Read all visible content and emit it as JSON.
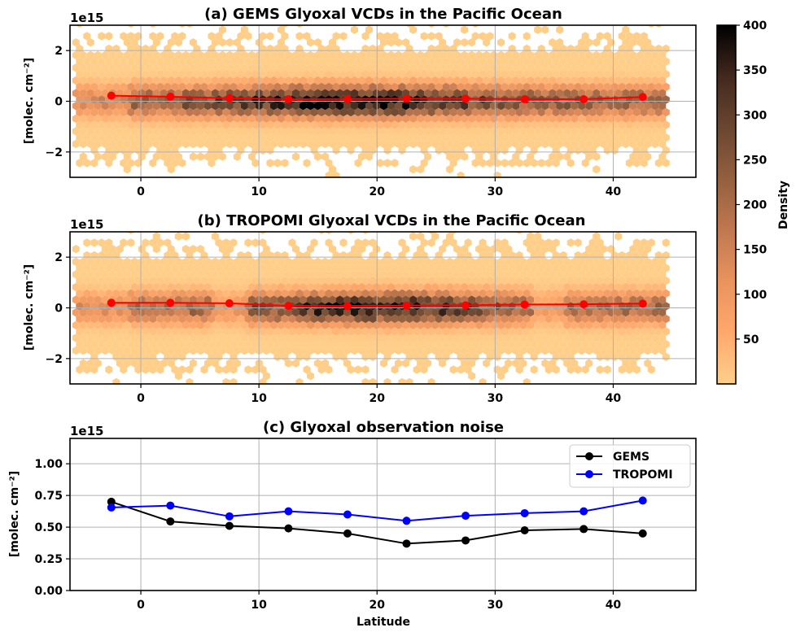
{
  "chart_data": [
    {
      "type": "scatter",
      "subtype": "hexbin-density",
      "title": "(a) GEMS Glyoxal VCDs in the Pacific Ocean",
      "ylabel": "[molec. cm$^{-2}$]",
      "ylabel_display": "[molec. cm⁻²]",
      "y_offset_label": "1e15",
      "xlim": [
        -6,
        47
      ],
      "ylim": [
        -3,
        3
      ],
      "xticks": [
        0,
        10,
        20,
        30,
        40
      ],
      "yticks": [
        -2,
        0,
        2
      ],
      "ytick_labels": [
        "−2",
        "0",
        "2"
      ],
      "grid": true,
      "mean_line": {
        "color": "#ff0000",
        "x": [
          -2.5,
          2.5,
          7.5,
          12.5,
          17.5,
          22.5,
          27.5,
          32.5,
          37.5,
          42.5
        ],
        "y": [
          0.22,
          0.18,
          0.12,
          0.08,
          0.09,
          0.1,
          0.1,
          0.08,
          0.08,
          0.17
        ]
      }
    },
    {
      "type": "scatter",
      "subtype": "hexbin-density",
      "title": "(b) TROPOMI Glyoxal VCDs in the Pacific Ocean",
      "ylabel": "[molec. cm$^{-2}$]",
      "ylabel_display": "[molec. cm⁻²]",
      "y_offset_label": "1e15",
      "xlim": [
        -6,
        47
      ],
      "ylim": [
        -3,
        3
      ],
      "xticks": [
        0,
        10,
        20,
        30,
        40
      ],
      "yticks": [
        -2,
        0,
        2
      ],
      "ytick_labels": [
        "−2",
        "0",
        "2"
      ],
      "grid": true,
      "mean_line": {
        "color": "#ff0000",
        "x": [
          -2.5,
          2.5,
          7.5,
          12.5,
          17.5,
          22.5,
          27.5,
          32.5,
          37.5,
          42.5
        ],
        "y": [
          0.2,
          0.2,
          0.18,
          0.08,
          0.07,
          0.09,
          0.1,
          0.13,
          0.14,
          0.17
        ]
      }
    },
    {
      "type": "line",
      "title": "(c) Glyoxal observation noise",
      "xlabel": "Latitude",
      "ylabel": "[molec. cm$^{-2}$]",
      "ylabel_display": "[molec. cm⁻²]",
      "y_offset_label": "1e15",
      "xlim": [
        -6,
        47
      ],
      "ylim": [
        0,
        1.2
      ],
      "xticks": [
        0,
        10,
        20,
        30,
        40
      ],
      "yticks": [
        0,
        0.25,
        0.5,
        0.75,
        1.0
      ],
      "ytick_labels": [
        "0.00",
        "0.25",
        "0.50",
        "0.75",
        "1.00"
      ],
      "grid": true,
      "legend": "top-right",
      "x": [
        -2.5,
        2.5,
        7.5,
        12.5,
        17.5,
        22.5,
        27.5,
        32.5,
        37.5,
        42.5
      ],
      "series": [
        {
          "name": "GEMS",
          "color": "#000000",
          "values": [
            0.7,
            0.545,
            0.51,
            0.49,
            0.45,
            0.37,
            0.395,
            0.475,
            0.485,
            0.45
          ]
        },
        {
          "name": "TROPOMI",
          "color": "#0000ff",
          "values": [
            0.655,
            0.67,
            0.585,
            0.625,
            0.6,
            0.55,
            0.59,
            0.61,
            0.625,
            0.71
          ]
        }
      ]
    }
  ],
  "colorbar": {
    "label": "Density",
    "range": [
      0,
      400
    ],
    "ticks": [
      50,
      100,
      150,
      200,
      250,
      300,
      350,
      400
    ],
    "colors": [
      "#ffcf8a",
      "#ffa86c",
      "#e9935e",
      "#c07850",
      "#93603f",
      "#6a4630",
      "#42291e",
      "#000000"
    ]
  }
}
